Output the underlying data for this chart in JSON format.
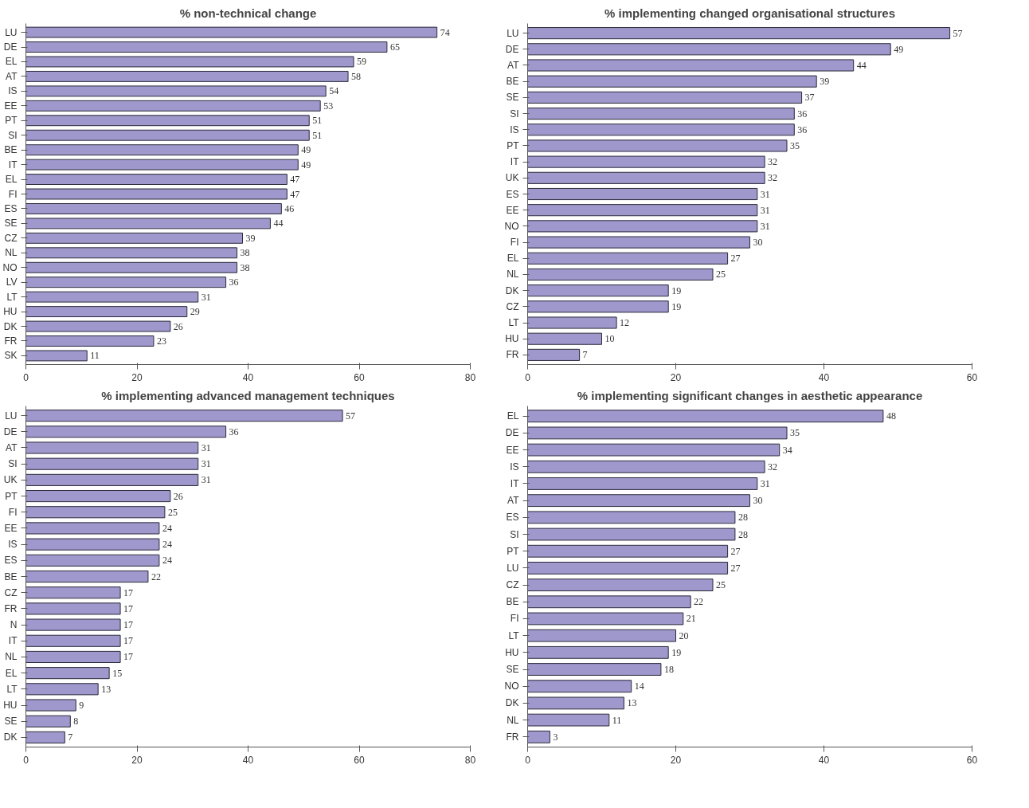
{
  "chart_data": [
    {
      "type": "bar",
      "orientation": "horizontal",
      "title": "% non-technical change",
      "color": "#9e98cc",
      "data_labels": true,
      "grid": false,
      "xlim": [
        0,
        80
      ],
      "xticks": [
        0,
        20,
        40,
        60,
        80
      ],
      "categories": [
        "LU",
        "DE",
        "EL",
        "AT",
        "IS",
        "EE",
        "PT",
        "SI",
        "BE",
        "IT",
        "EL",
        "FI",
        "ES",
        "SE",
        "CZ",
        "NL",
        "NO",
        "LV",
        "LT",
        "HU",
        "DK",
        "FR",
        "SK"
      ],
      "values": [
        74,
        65,
        59,
        58,
        54,
        53,
        51,
        51,
        49,
        49,
        47,
        47,
        46,
        44,
        39,
        38,
        38,
        36,
        31,
        29,
        26,
        23,
        11
      ]
    },
    {
      "type": "bar",
      "orientation": "horizontal",
      "title": "% implementing changed organisational structures",
      "color": "#9e98cc",
      "data_labels": true,
      "grid": false,
      "xlim": [
        0,
        60
      ],
      "xticks": [
        0,
        20,
        40,
        60
      ],
      "categories": [
        "LU",
        "DE",
        "AT",
        "BE",
        "SE",
        "SI",
        "IS",
        "PT",
        "IT",
        "UK",
        "ES",
        "EE",
        "NO",
        "FI",
        "EL",
        "NL",
        "DK",
        "CZ",
        "LT",
        "HU",
        "FR"
      ],
      "values": [
        57,
        49,
        44,
        39,
        37,
        36,
        36,
        35,
        32,
        32,
        31,
        31,
        31,
        30,
        27,
        25,
        19,
        19,
        12,
        10,
        7
      ]
    },
    {
      "type": "bar",
      "orientation": "horizontal",
      "title": "% implementing advanced management techniques",
      "color": "#9e98cc",
      "data_labels": true,
      "grid": false,
      "xlim": [
        0,
        80
      ],
      "xticks": [
        0,
        20,
        40,
        60,
        80
      ],
      "categories": [
        "LU",
        "DE",
        "AT",
        "SI",
        "UK",
        "PT",
        "FI",
        "EE",
        "IS",
        "ES",
        "BE",
        "CZ",
        "FR",
        "N",
        "IT",
        "NL",
        "EL",
        "LT",
        "HU",
        "SE",
        "DK"
      ],
      "values": [
        57,
        36,
        31,
        31,
        31,
        26,
        25,
        24,
        24,
        24,
        22,
        17,
        17,
        17,
        17,
        17,
        15,
        13,
        9,
        8,
        7
      ]
    },
    {
      "type": "bar",
      "orientation": "horizontal",
      "title": "% implementing significant changes in aesthetic appearance",
      "color": "#9e98cc",
      "data_labels": true,
      "grid": false,
      "xlim": [
        0,
        60
      ],
      "xticks": [
        0,
        20,
        40,
        60
      ],
      "categories": [
        "EL",
        "DE",
        "EE",
        "IS",
        "IT",
        "AT",
        "ES",
        "SI",
        "PT",
        "LU",
        "CZ",
        "BE",
        "FI",
        "LT",
        "HU",
        "SE",
        "NO",
        "DK",
        "NL",
        "FR"
      ],
      "values": [
        48,
        35,
        34,
        32,
        31,
        30,
        28,
        28,
        27,
        27,
        25,
        22,
        21,
        20,
        19,
        18,
        14,
        13,
        11,
        3
      ]
    }
  ]
}
